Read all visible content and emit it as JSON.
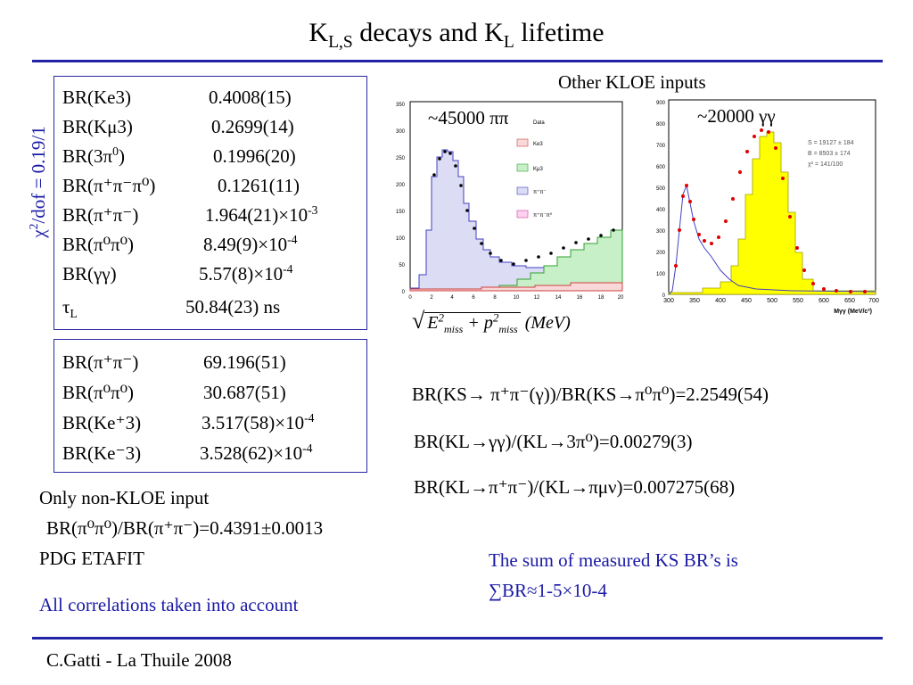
{
  "title": {
    "main": "K",
    "sub1": "L,S",
    "mid": " decays and K",
    "sub2": "L",
    "end": " lifetime"
  },
  "chi2": {
    "chi": "χ",
    "sup": "2",
    "rest": "/dof = 0.19/1"
  },
  "top_box": [
    {
      "label": "BR(Ke3)",
      "value": "0.4008(15)"
    },
    {
      "label": "BR(Kμ3)",
      "value": "0.2699(14)"
    },
    {
      "label_pre": "BR(3π",
      "label_sup": "0",
      "label_post": ")",
      "value": "0.1996(20)"
    },
    {
      "label": "BR(π⁺π⁻π⁰)",
      "value": "0.1261(11)"
    },
    {
      "label": "BR(π⁺π⁻)",
      "value_pre": "1.964(21)×10",
      "value_sup": "-3"
    },
    {
      "label": "BR(π⁰π⁰)",
      "value_pre": "8.49(9)×10",
      "value_sup": "-4"
    },
    {
      "label": "BR(γγ)",
      "value_pre": "5.57(8)×10",
      "value_sup": "-4"
    },
    {
      "label_pre": "τ",
      "label_sub": "L",
      "value": "50.84(23) ns"
    }
  ],
  "bottom_box": [
    {
      "label": "BR(π⁺π⁻)",
      "value": "69.196(51)"
    },
    {
      "label": "BR(π⁰π⁰)",
      "value": "30.687(51)"
    },
    {
      "label": "BR(Ke⁺3)",
      "value_pre": "3.517(58)×10",
      "value_sup": "-4"
    },
    {
      "label": "BR(Ke⁻3)",
      "value_pre": "3.528(62)×10",
      "value_sup": "-4"
    }
  ],
  "non_kloe": {
    "heading": "Only non-KLOE input",
    "formula": "BR(π⁰π⁰)/BR(π⁺π⁻)=0.4391±0.0013",
    "source": "PDG ETAFIT"
  },
  "correlations": "All correlations taken into account",
  "other_inputs": "Other KLOE inputs",
  "plot_left": {
    "count_label": "~45000 ππ",
    "legend": [
      "Data",
      "Ke3",
      "Kμ3",
      "π⁺π⁻",
      "π⁺π⁻π⁰"
    ],
    "y_ticks": [
      "0",
      "50",
      "100",
      "150",
      "200",
      "250",
      "300",
      "350"
    ],
    "x_ticks": [
      "0",
      "2",
      "4",
      "6",
      "8",
      "10",
      "12",
      "14",
      "16",
      "18",
      "20"
    ],
    "axis_label": "(MeV)"
  },
  "plot_right": {
    "count_label": "~20000 γγ",
    "stats": [
      "S = 19127 ± 184",
      "B = 8503 ± 174",
      "χ² = 141/100"
    ],
    "y_ticks": [
      "0",
      "100",
      "200",
      "300",
      "400",
      "500",
      "600",
      "700",
      "800",
      "900"
    ],
    "x_ticks": [
      "300",
      "350",
      "400",
      "450",
      "500",
      "550",
      "600",
      "650",
      "700"
    ],
    "x_label": "Mγγ (MeV/c²)"
  },
  "ratios": [
    "BR(KS→ π⁺π⁻(γ))/BR(KS→π⁰π⁰)=2.2549(54)",
    "BR(KL→γγ)/(KL→3π⁰)=0.00279(3)",
    "BR(KL→π⁺π⁻)/(KL→πμν)=0.007275(68)"
  ],
  "sum_note": {
    "line1": "The sum of measured KS BR’s is",
    "line2": "∑BR≈1-5×10-4"
  },
  "footer": "C.Gatti - La Thuile 2008",
  "colors": {
    "rule": "#2323a8",
    "accent_text": "#1a1aa6",
    "box_border": "#2a2aa0"
  }
}
